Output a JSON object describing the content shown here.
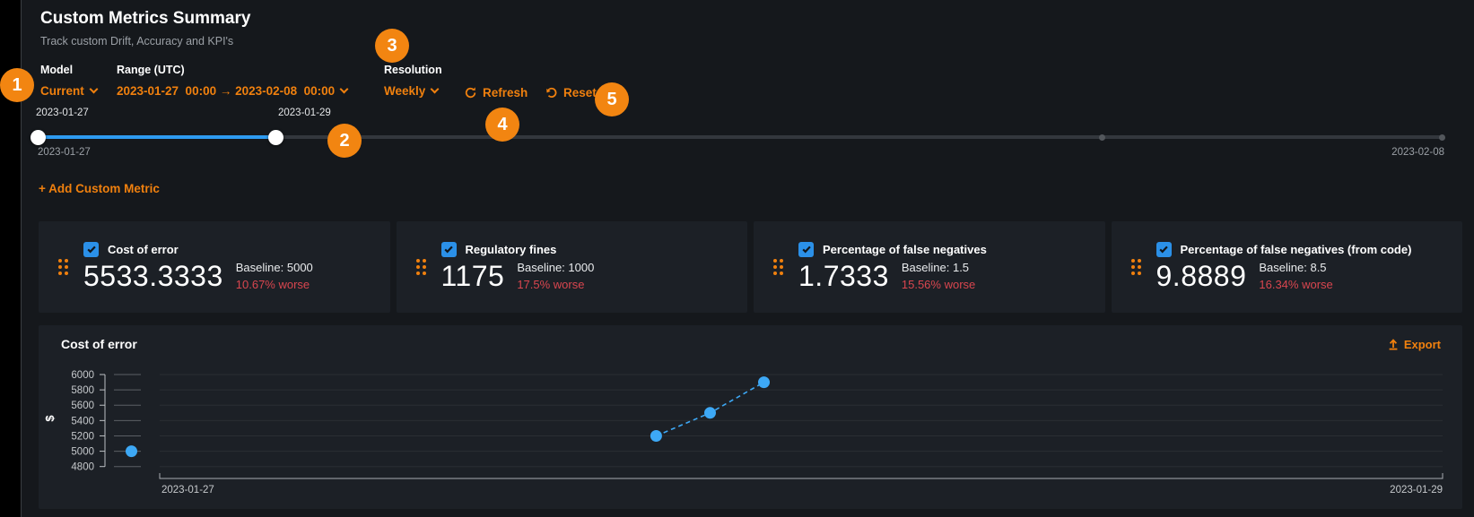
{
  "page": {
    "title": "Custom Metrics Summary",
    "subtitle": "Track custom Drift, Accuracy and KPI's"
  },
  "controls": {
    "model_label": "Model",
    "model_value": "Current",
    "range_label": "Range (UTC)",
    "range_value": "2023-01-27  00:00 → 2023-02-08  00:00",
    "resolution_label": "Resolution",
    "resolution_value": "Weekly",
    "refresh_label": "Refresh",
    "reset_label": "Reset"
  },
  "badges": [
    "1",
    "2",
    "3",
    "4",
    "5"
  ],
  "slider": {
    "start_handle_label": "2023-01-27",
    "end_handle_label": "2023-01-29",
    "range_min_label": "2023-01-27",
    "range_max_label": "2023-02-08"
  },
  "add_metric_label": "+ Add Custom Metric",
  "metric_cards": [
    {
      "title": "Cost of error",
      "value": "5533.3333",
      "baseline": "Baseline: 5000",
      "delta": "10.67% worse",
      "checked": true
    },
    {
      "title": "Regulatory fines",
      "value": "1175",
      "baseline": "Baseline: 1000",
      "delta": "17.5% worse",
      "checked": true
    },
    {
      "title": "Percentage of false negatives",
      "value": "1.7333",
      "baseline": "Baseline: 1.5",
      "delta": "15.56% worse",
      "checked": true
    },
    {
      "title": "Percentage of false negatives (from code)",
      "value": "9.8889",
      "baseline": "Baseline: 8.5",
      "delta": "16.34% worse",
      "checked": true
    }
  ],
  "chart": {
    "title": "Cost of error",
    "export_label": "Export"
  },
  "chart_data": {
    "type": "line",
    "title": "Cost of error",
    "ylabel": "$",
    "ylim": [
      4800,
      6000
    ],
    "yticks": [
      4800,
      5000,
      5200,
      5400,
      5600,
      5800,
      6000
    ],
    "x_axis_labels": [
      "2023-01-27",
      "2023-01-29"
    ],
    "grid": true,
    "line_style": "dashed",
    "legend": "none",
    "series": [
      {
        "name": "Cost of error",
        "points": [
          {
            "x_frac": -0.022,
            "value": 5000,
            "connected": false
          },
          {
            "x_frac": 0.387,
            "value": 5200,
            "connected": true
          },
          {
            "x_frac": 0.429,
            "value": 5500,
            "connected": true
          },
          {
            "x_frac": 0.471,
            "value": 5900,
            "connected": true
          }
        ]
      }
    ]
  },
  "colors": {
    "accent_orange": "#F0800E",
    "badge_orange": "#F28511",
    "negative_red": "#D9464F",
    "point_blue": "#3DA8F5",
    "slider_blue": "#2E9BF0",
    "checkbox_blue": "#2B90E8",
    "card_bg": "#1C2026",
    "page_bg": "#15181C"
  }
}
